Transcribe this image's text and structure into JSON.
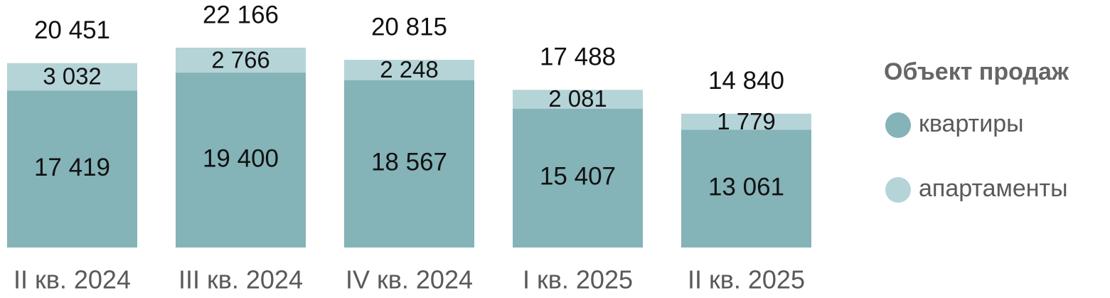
{
  "chart_data": {
    "type": "stacked-bar",
    "categories": [
      "II кв. 2024",
      "III кв. 2024",
      "IV кв. 2024",
      "I кв. 2025",
      "II кв. 2025"
    ],
    "series": [
      {
        "name": "квартиры",
        "color": "#84b3b8",
        "values": [
          17419,
          19400,
          18567,
          15407,
          13061
        ],
        "value_labels": [
          "17 419",
          "19 400",
          "18 567",
          "15 407",
          "13 061"
        ]
      },
      {
        "name": "апартаменты",
        "color": "#b5d4d7",
        "values": [
          3032,
          2766,
          2248,
          2081,
          1779
        ],
        "value_labels": [
          "3 032",
          "2 766",
          "2 248",
          "2 081",
          "1 779"
        ]
      }
    ],
    "totals": [
      20451,
      22166,
      20815,
      17488,
      14840
    ],
    "total_labels": [
      "20 451",
      "22 166",
      "20 815",
      "17 488",
      "14 840"
    ],
    "legend_title": "Объект продаж",
    "legend": "right"
  }
}
